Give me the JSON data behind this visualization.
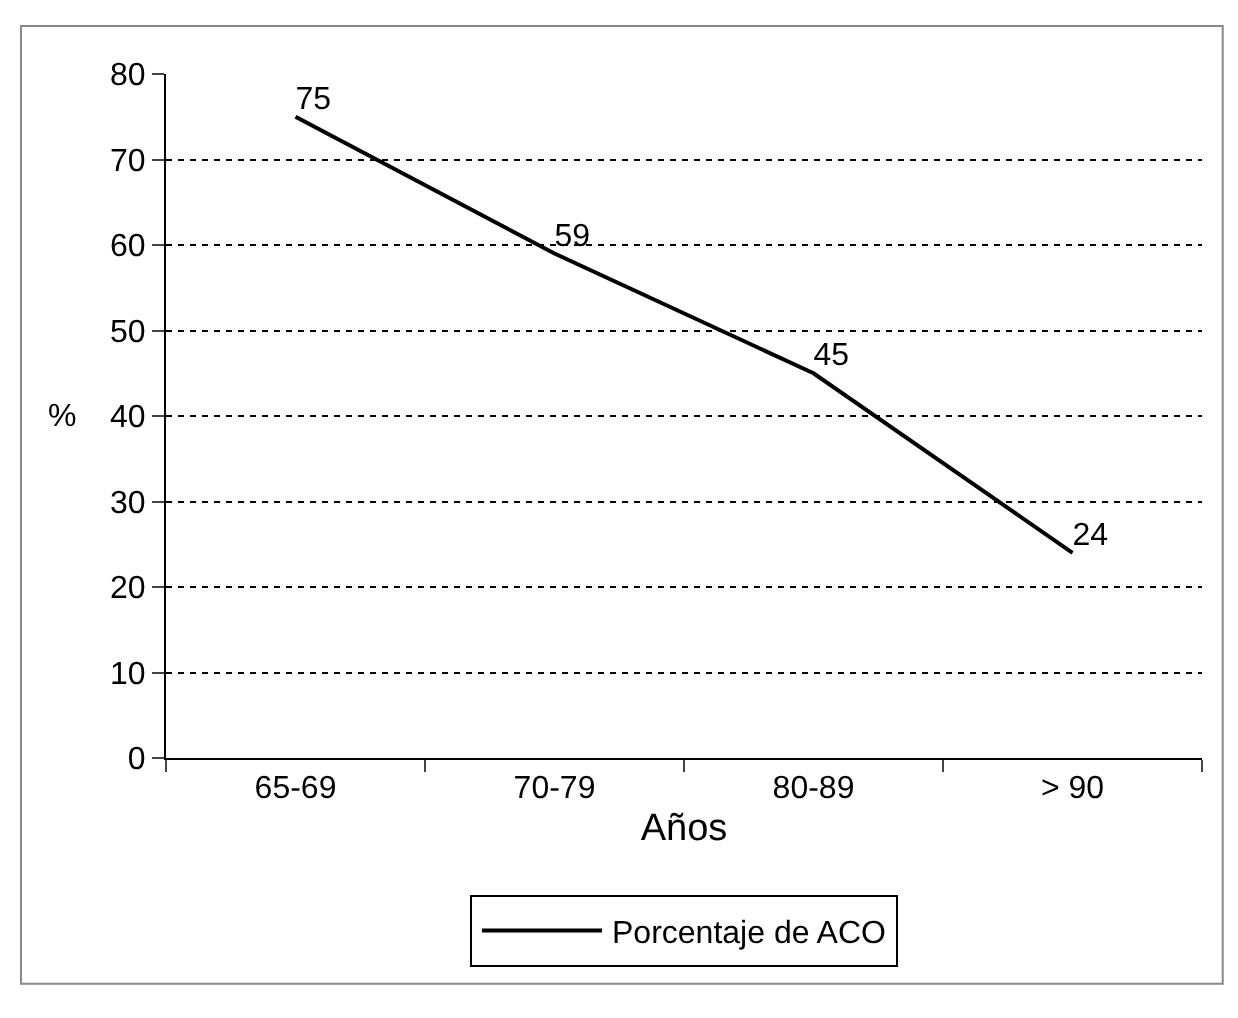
{
  "chart_data": {
    "type": "line",
    "xlabel": "Años",
    "ylabel": "%",
    "categories": [
      "65-69",
      "70-79",
      "80-89",
      "> 90"
    ],
    "series": [
      {
        "name": "Porcentaje de ACO",
        "color": "#000000",
        "values": [
          75,
          59,
          45,
          24
        ]
      }
    ],
    "ylim": [
      0,
      80
    ],
    "yticks": [
      0,
      10,
      20,
      30,
      40,
      50,
      60,
      70,
      80
    ],
    "grid": "y",
    "legend": "bottom",
    "data_labels": true,
    "marker": "none",
    "line_style": "solid"
  }
}
